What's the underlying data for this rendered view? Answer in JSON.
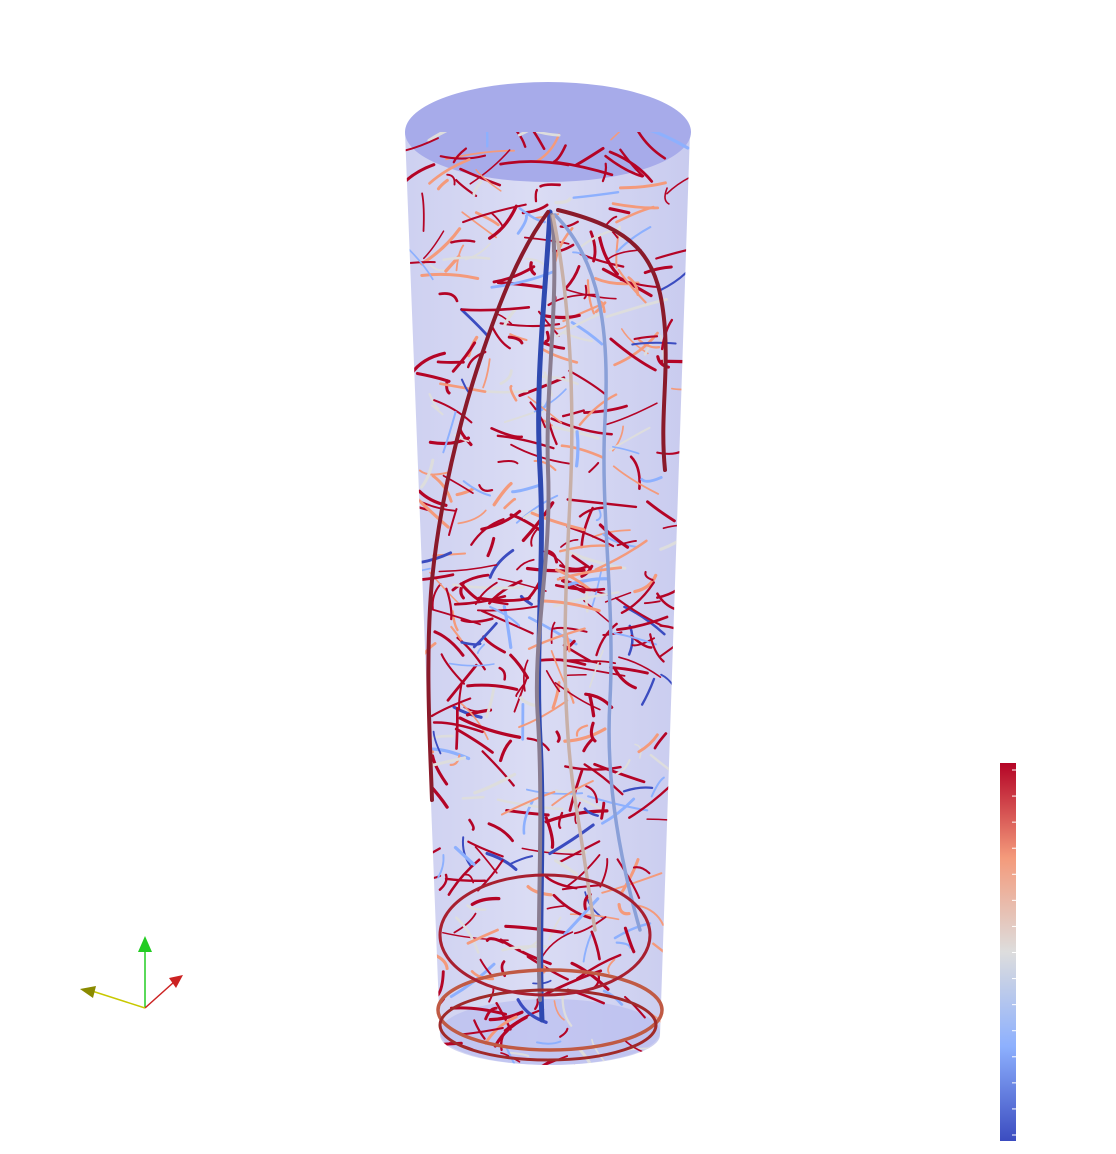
{
  "scene": {
    "background": "#ffffff",
    "container_color": "#9ea3e6",
    "colormap": [
      "#3b4cc0",
      "#8db0fe",
      "#dddddd",
      "#f49a7b",
      "#b40426"
    ]
  },
  "orientation_axes": {
    "x_color": "#cc2222",
    "y_color": "#22cc22",
    "z_color": "#c8c800",
    "icons": [
      "x-axis-arrow-icon",
      "y-axis-arrow-icon",
      "z-axis-arrow-icon"
    ]
  },
  "color_bar": {
    "colors": [
      "#b40426",
      "#f49a7b",
      "#dddddd",
      "#8db0fe",
      "#3b4cc0"
    ],
    "tick_count": 15
  }
}
